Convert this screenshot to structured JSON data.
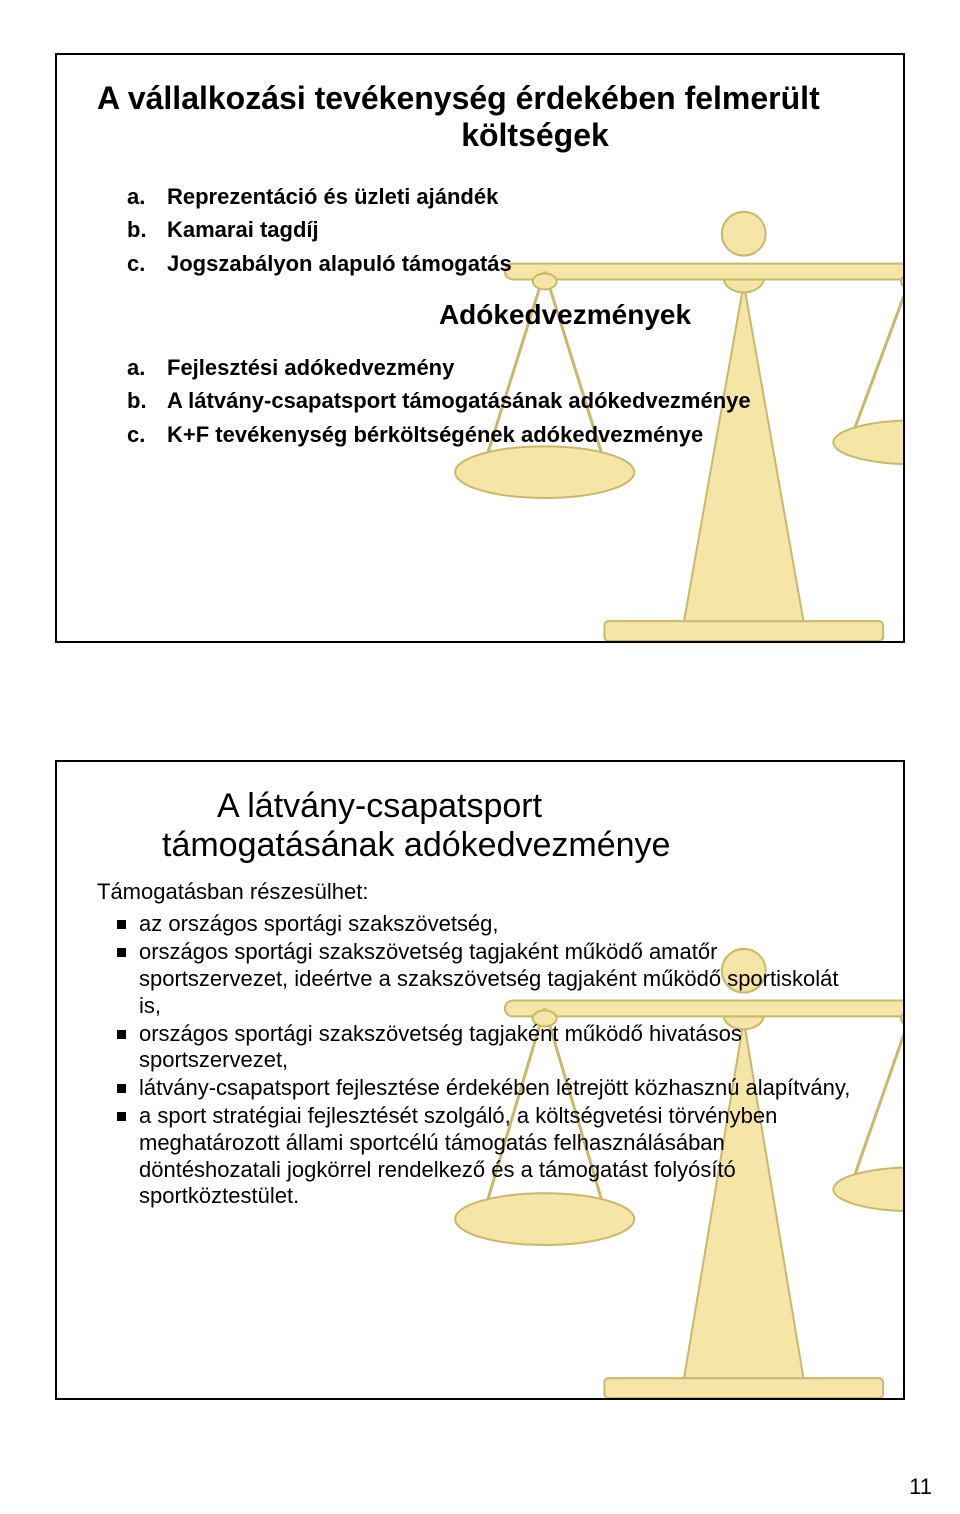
{
  "colors": {
    "scale_fill": "#f5e6a8",
    "scale_stroke": "#b8a850",
    "text": "#000000",
    "border": "#000000",
    "background": "#ffffff"
  },
  "slide1": {
    "title_line1": "A vállalkozási tevékenység érdekében felmerült",
    "title_line2": "költségek",
    "list1": [
      {
        "marker": "a.",
        "text": "Reprezentáció és üzleti ajándék"
      },
      {
        "marker": "b.",
        "text": "Kamarai tagdíj"
      },
      {
        "marker": "c.",
        "text": "Jogszabályon alapuló támogatás"
      }
    ],
    "subheading": "Adókedvezmények",
    "list2": [
      {
        "marker": "a.",
        "text": "Fejlesztési adókedvezmény"
      },
      {
        "marker": "b.",
        "text": "A látvány-csapatsport támogatásának adókedvezménye"
      },
      {
        "marker": "c.",
        "text": "K+F tevékenység bérköltségének adókedvezménye"
      }
    ]
  },
  "slide2": {
    "title_line1": "A látvány-csapatsport",
    "title_line2": "támogatásának adókedvezménye",
    "lead": "Támogatásban részesülhet:",
    "bullets": [
      "az országos sportági szakszövetség,",
      "országos sportági szakszövetség tagjaként működő amatőr sportszervezet, ideértve a szakszövetség tagjaként működő sportiskolát is,",
      "országos sportági szakszövetség tagjaként működő hivatásos sportszervezet,",
      "látvány-csapatsport fejlesztése érdekében létrejött közhasznú alapítvány,",
      "a sport stratégiai fejlesztését szolgáló, a költségvetési törvényben meghatározott állami sportcélú támogatás felhasználásában döntéshozatali jogkörrel rendelkező és a támogatást folyósító sportköztestület."
    ]
  },
  "page_number": "11",
  "typography": {
    "title_fontsize": 32,
    "title2_fontsize": 34,
    "body_fontsize": 22,
    "font_family": "Arial"
  }
}
